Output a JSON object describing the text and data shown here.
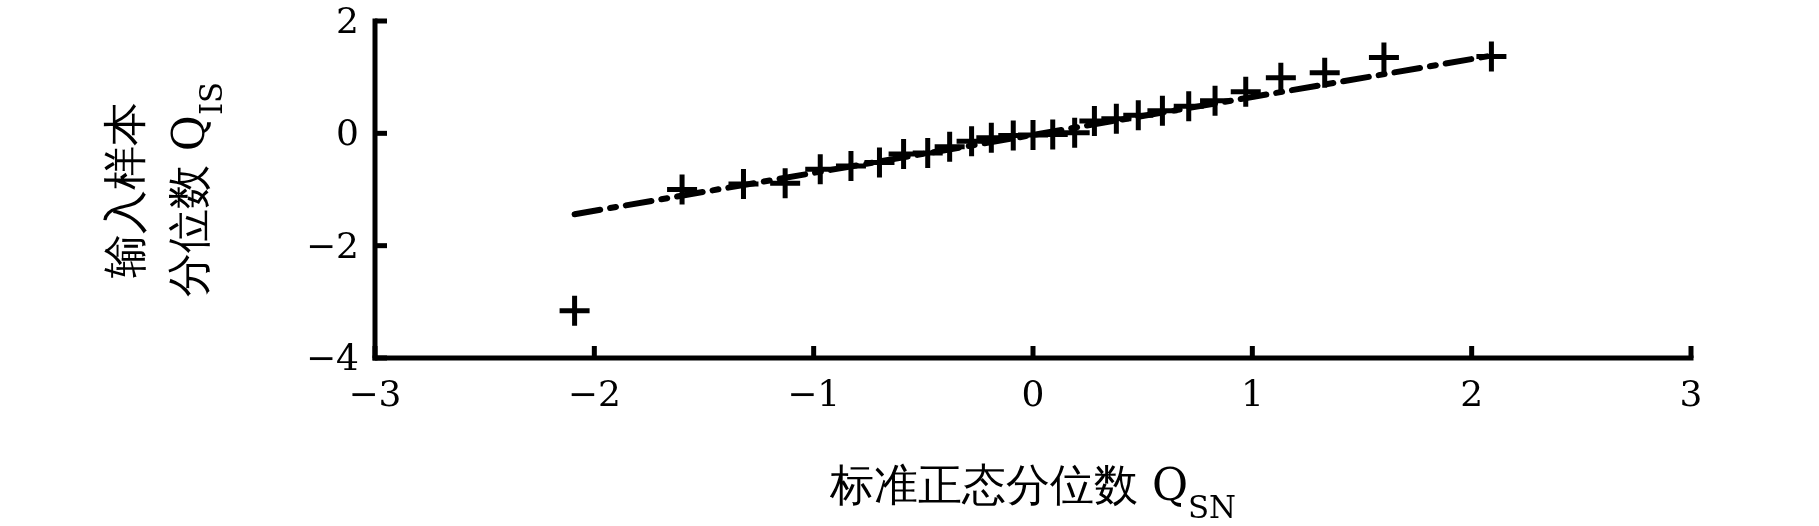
{
  "chart_data": {
    "type": "scatter",
    "xlabel": "标准正态分位数 Q$_{SN}$",
    "ylabel": "输入样本分位数 Q$_{IS}$",
    "xlim": [
      -3,
      3
    ],
    "ylim": [
      -4,
      2
    ],
    "xticks": [
      {
        "value": -3,
        "label": "−3"
      },
      {
        "value": -2,
        "label": "−2"
      },
      {
        "value": -1,
        "label": "−1"
      },
      0,
      1,
      2,
      3
    ],
    "yticks": [
      {
        "value": -4,
        "label": "−4"
      },
      {
        "value": -2,
        "label": "−2"
      },
      0,
      2
    ],
    "grid": false,
    "series": [
      {
        "type": "scatter",
        "marker": "cross",
        "color": "#000000",
        "x": [
          -2.09,
          -1.6,
          -1.32,
          -1.13,
          -0.97,
          -0.83,
          -0.7,
          -0.59,
          -0.48,
          -0.38,
          -0.28,
          -0.19,
          -0.09,
          0,
          0.09,
          0.19,
          0.28,
          0.38,
          0.48,
          0.59,
          0.71,
          0.83,
          0.97,
          1.13,
          1.33,
          1.6,
          2.09
        ],
        "values": [
          -3.16,
          -1.0,
          -0.9,
          -0.89,
          -0.64,
          -0.58,
          -0.52,
          -0.37,
          -0.35,
          -0.24,
          -0.14,
          -0.08,
          -0.04,
          -0.03,
          -0.02,
          0.01,
          0.22,
          0.26,
          0.32,
          0.4,
          0.48,
          0.58,
          0.74,
          0.99,
          1.08,
          1.35,
          1.37
        ]
      },
      {
        "type": "line",
        "line_style": "dashed",
        "marker": "none",
        "color": "#000000",
        "x": [
          -2.09,
          2.1
        ],
        "values": [
          -1.44,
          1.39
        ]
      }
    ]
  }
}
